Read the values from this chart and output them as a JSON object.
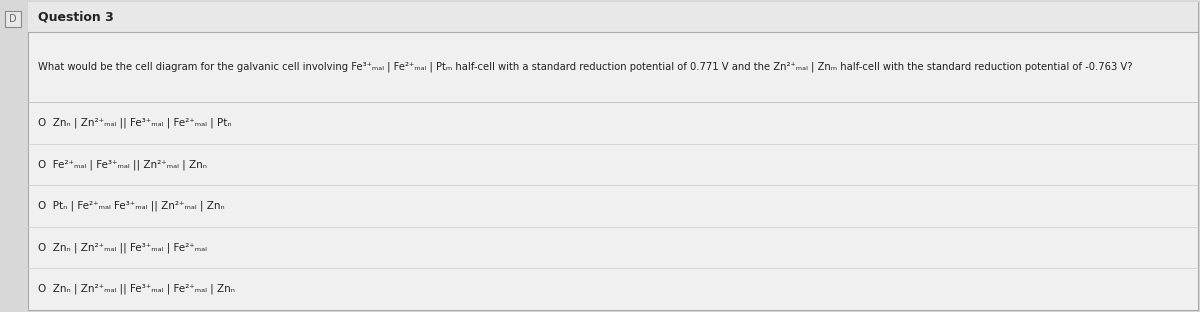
{
  "title": "Question 3",
  "bg_color": "#d8d8d8",
  "main_bg": "#f0f0f0",
  "white": "#ffffff",
  "border_color": "#aaaaaa",
  "divider_color": "#bbbbbb",
  "text_color": "#222222",
  "font_size_title": 9,
  "font_size_question": 7.2,
  "font_size_options": 7.5,
  "fig_width": 12.0,
  "fig_height": 3.12,
  "question": "What would be the cell diagram for the galvanic cell involving Fe³⁺ₘₐₗ | Fe²⁺ₘₐₗ | Ptₘ half-cell with a standard reduction potential of 0.771 V and the Zn²⁺ₘₐₗ | Znₘ half-cell with the standard reduction potential of -0.763 V?",
  "options": [
    "O  Znₙ | Zn²⁺ₘₐₗ || Fe³⁺ₘₐₗ | Fe²⁺ₘₐₗ | Ptₙ",
    "O  Fe²⁺ₘₐₗ | Fe³⁺ₘₐₗ || Zn²⁺ₘₐₗ | Znₙ",
    "O  Ptₙ | Fe²⁺ₘₐₗ Fe³⁺ₘₐₗ || Zn²⁺ₘₐₗ | Znₙ",
    "O  Znₙ | Zn²⁺ₘₐₗ || Fe³⁺ₘₐₗ | Fe²⁺ₘₐₗ",
    "O  Znₙ | Zn²⁺ₘₐₗ || Fe³⁺ₘₐₗ | Fe²⁺ₘₐₗ | Znₙ"
  ]
}
